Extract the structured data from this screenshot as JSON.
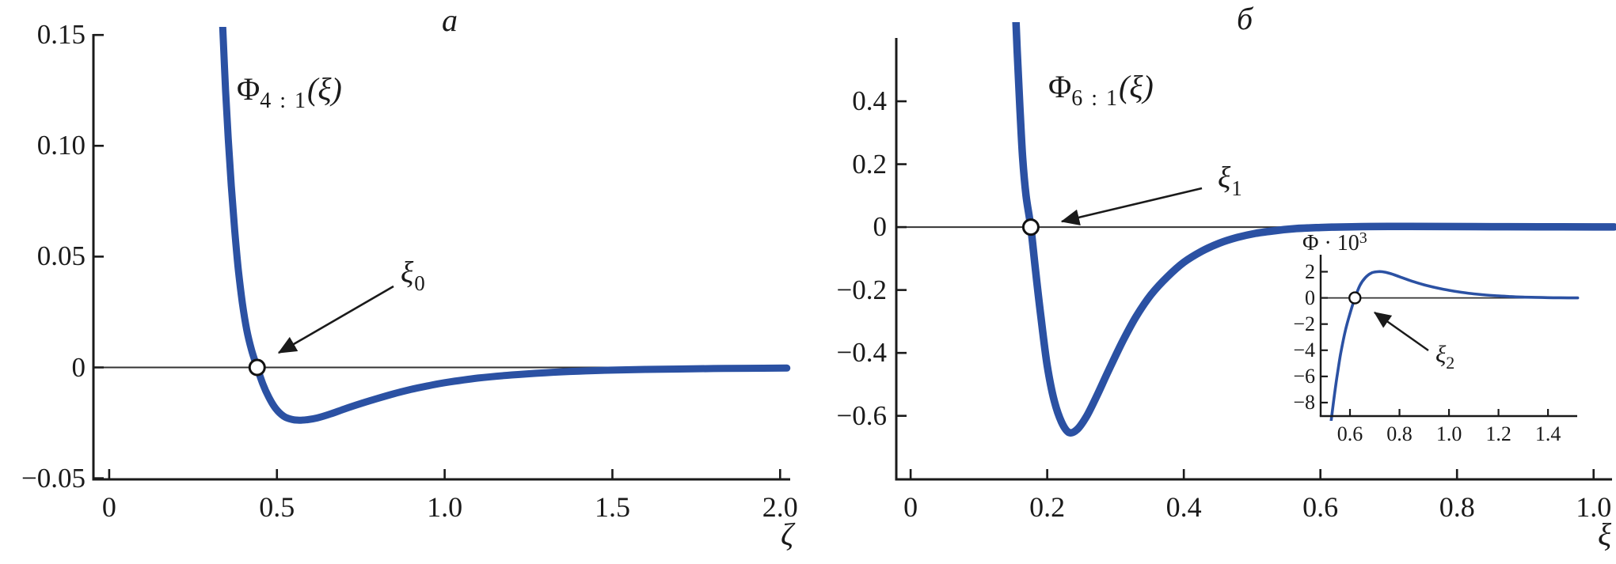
{
  "figure": {
    "background": "#ffffff",
    "curve_color": "#2b51a3",
    "axis_color": "#1a1a1a",
    "zero_line_color": "#333333",
    "panels": [
      {
        "title": "a",
        "curve_label": {
          "base": "Φ",
          "sub": "4 : 1",
          "arg": "(ξ)"
        },
        "x_axis_label": "ζ",
        "annotation": {
          "base": "ξ",
          "sub": "0"
        }
      },
      {
        "title": "б",
        "curve_label": {
          "base": "Φ",
          "sub": "6 : 1",
          "arg": "(ξ)"
        },
        "x_axis_label": "ξ",
        "annotation": {
          "base": "ξ",
          "sub": "1"
        }
      }
    ],
    "inset": {
      "title": {
        "base": "Φ · 10",
        "sup": "3"
      },
      "annotation": {
        "base": "ξ",
        "sub": "2"
      }
    }
  },
  "chart_data": [
    {
      "id": "panel-a",
      "type": "line",
      "title": "a",
      "xlabel": "ζ",
      "ylabel": "",
      "xlim": [
        -0.047,
        2.03
      ],
      "ylim": [
        -0.0505,
        0.1515
      ],
      "xticks": [
        0,
        0.5,
        1.0,
        1.5,
        2.0
      ],
      "xtick_labels": [
        "0",
        "0.5",
        "1.0",
        "1.5",
        "2.0"
      ],
      "yticks": [
        0.15,
        0.1,
        0.05,
        0,
        -0.05
      ],
      "ytick_labels": [
        "0.15",
        "0.10",
        "0.05",
        "0",
        "−0.05"
      ],
      "grid": false,
      "zero_line": true,
      "root_marker": {
        "x": 0.441,
        "y": 0,
        "label": "ξ0"
      },
      "series": [
        {
          "name": "Φ4:1(ξ)",
          "x": [
            0.334,
            0.34,
            0.347,
            0.355,
            0.364,
            0.374,
            0.385,
            0.397,
            0.41,
            0.424,
            0.441,
            0.458,
            0.476,
            0.496,
            0.52,
            0.545,
            0.566,
            0.59,
            0.62,
            0.66,
            0.7,
            0.75,
            0.8,
            0.85,
            0.9,
            0.95,
            1.0,
            1.1,
            1.2,
            1.3,
            1.4,
            1.5,
            1.6,
            1.7,
            1.8,
            1.9,
            2.02
          ],
          "y": [
            0.17,
            0.148,
            0.125,
            0.103,
            0.082,
            0.062,
            0.044,
            0.029,
            0.017,
            0.008,
            0.0,
            -0.0075,
            -0.0135,
            -0.0185,
            -0.022,
            -0.0235,
            -0.0238,
            -0.0236,
            -0.0228,
            -0.021,
            -0.0188,
            -0.0163,
            -0.014,
            -0.0118,
            -0.0099,
            -0.0083,
            -0.0069,
            -0.0048,
            -0.0034,
            -0.0024,
            -0.0017,
            -0.0012,
            -0.0009,
            -0.0007,
            -0.0005,
            -0.0004,
            -0.0003
          ]
        }
      ]
    },
    {
      "id": "panel-b",
      "type": "line",
      "title": "б",
      "xlabel": "ξ",
      "ylabel": "",
      "xlim": [
        -0.021,
        1.027
      ],
      "ylim": [
        -0.802,
        0.6365
      ],
      "xticks": [
        0,
        0.2,
        0.4,
        0.6,
        0.8,
        1.0
      ],
      "xtick_labels": [
        "0",
        "0.2",
        "0.4",
        "0.6",
        "0.8",
        "1.0"
      ],
      "yticks": [
        0.4,
        0.2,
        0,
        -0.2,
        -0.4,
        -0.6
      ],
      "ytick_labels": [
        "0.4",
        "0.2",
        "0",
        "−0.2",
        "−0.4",
        "−0.6"
      ],
      "grid": false,
      "zero_line": true,
      "root_marker": {
        "x": 0.176,
        "y": 0,
        "label": "ξ1"
      },
      "series": [
        {
          "name": "Φ6:1(ξ)",
          "x": [
            0.152,
            0.156,
            0.16,
            0.164,
            0.169,
            0.176,
            0.183,
            0.191,
            0.2,
            0.21,
            0.221,
            0.232,
            0.244,
            0.258,
            0.273,
            0.29,
            0.31,
            0.33,
            0.352,
            0.376,
            0.4,
            0.426,
            0.452,
            0.478,
            0.505,
            0.535,
            0.565,
            0.6,
            0.62,
            0.66,
            0.7,
            0.73,
            0.78,
            0.85,
            0.92,
            1.0,
            1.03
          ],
          "y": [
            0.78,
            0.56,
            0.38,
            0.22,
            0.1,
            0.0,
            -0.14,
            -0.29,
            -0.44,
            -0.55,
            -0.62,
            -0.653,
            -0.643,
            -0.6,
            -0.535,
            -0.455,
            -0.365,
            -0.285,
            -0.215,
            -0.158,
            -0.112,
            -0.077,
            -0.051,
            -0.033,
            -0.02,
            -0.011,
            -0.0046,
            -0.0012,
            0.0,
            0.0014,
            0.0019,
            0.002,
            0.0018,
            0.0013,
            0.0009,
            0.0005,
            0.0004
          ]
        }
      ]
    },
    {
      "id": "inset",
      "type": "line",
      "title": "Φ · 10³",
      "xlabel": "",
      "ylabel": "Φ · 10³",
      "xlim": [
        0.4816,
        1.518
      ],
      "ylim": [
        -9.03,
        3.3
      ],
      "xticks": [
        0.6,
        0.8,
        1.0,
        1.2,
        1.4
      ],
      "xtick_labels": [
        "0.6",
        "0.8",
        "1.0",
        "1.2",
        "1.4"
      ],
      "yticks": [
        2,
        0,
        -2,
        -4,
        -6,
        -8
      ],
      "ytick_labels": [
        "2",
        "0",
        "−2",
        "−4",
        "−6",
        "−8"
      ],
      "grid": false,
      "zero_line": true,
      "units": "Φ × 10^-3",
      "root_marker": {
        "x": 0.62,
        "y": 0,
        "label": "ξ2"
      },
      "series": [
        {
          "name": "Φ6:1(ξ)·10³",
          "x": [
            0.52,
            0.533,
            0.547,
            0.562,
            0.58,
            0.6,
            0.62,
            0.64,
            0.662,
            0.686,
            0.71,
            0.73,
            0.76,
            0.8,
            0.85,
            0.9,
            0.95,
            1.0,
            1.05,
            1.1,
            1.15,
            1.2,
            1.25,
            1.3,
            1.35,
            1.4,
            1.45,
            1.52
          ],
          "y": [
            -10.0,
            -8.0,
            -6.1,
            -4.3,
            -2.6,
            -1.2,
            0.0,
            0.95,
            1.55,
            1.9,
            2.0,
            2.0,
            1.88,
            1.62,
            1.28,
            1.0,
            0.77,
            0.58,
            0.43,
            0.31,
            0.22,
            0.15,
            0.1,
            0.06,
            0.04,
            0.02,
            0.01,
            0.0
          ]
        }
      ]
    }
  ]
}
